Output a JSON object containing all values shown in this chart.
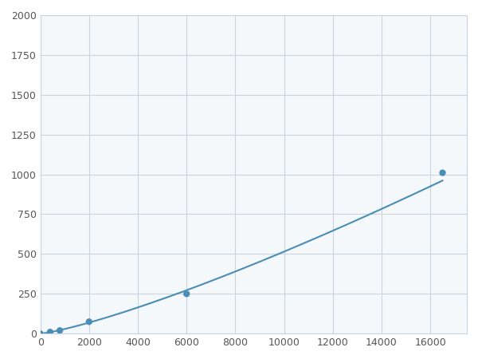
{
  "x": [
    0,
    400,
    800,
    2000,
    6000,
    16500
  ],
  "y": [
    0,
    10,
    20,
    75,
    250,
    1010
  ],
  "line_color": "#4a8db5",
  "marker_color": "#4a8db5",
  "marker_size": 6,
  "xlim": [
    0,
    17500
  ],
  "ylim": [
    0,
    2000
  ],
  "xticks": [
    0,
    2000,
    4000,
    6000,
    8000,
    10000,
    12000,
    14000,
    16000
  ],
  "yticks": [
    0,
    250,
    500,
    750,
    1000,
    1250,
    1500,
    1750,
    2000
  ],
  "grid_color": "#c8d4e0",
  "background_color": "#f5f8fb",
  "fig_background": "#ffffff"
}
